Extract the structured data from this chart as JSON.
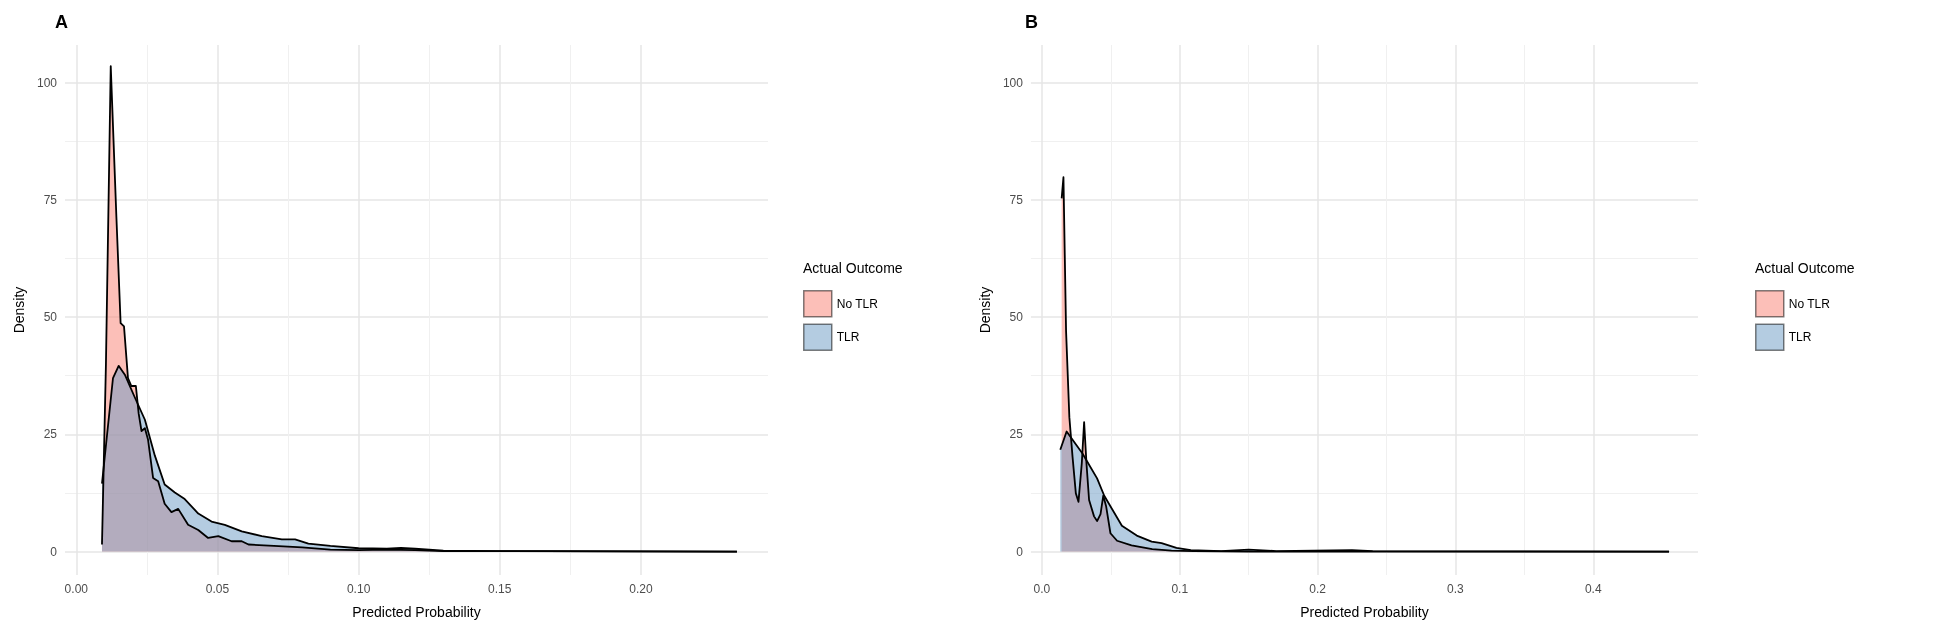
{
  "chart_data": [
    {
      "type": "area",
      "title": "A",
      "xlabel": "Predicted Probability",
      "ylabel": "Density",
      "legend_title": "Actual Outcome",
      "legend": "right",
      "grid": true,
      "xlim": [
        -0.004,
        0.245
      ],
      "xticks": [
        {
          "value": 0,
          "label": "0.00"
        },
        0.05,
        {
          "value": 0.1,
          "label": "0.10"
        },
        0.15,
        {
          "value": 0.2,
          "label": "0.20"
        }
      ],
      "ylim": [
        -5,
        108
      ],
      "yticks": [
        0,
        25,
        50,
        75,
        100
      ],
      "series": [
        {
          "name": "No TLR",
          "color": "#fa8072",
          "x": [
            0.0091,
            0.0105,
            0.0122,
            0.0142,
            0.0157,
            0.0169,
            0.0183,
            0.0195,
            0.0211,
            0.0221,
            0.0231,
            0.0243,
            0.0254,
            0.0272,
            0.029,
            0.0313,
            0.0337,
            0.0361,
            0.0396,
            0.0432,
            0.0467,
            0.0503,
            0.055,
            0.0586,
            0.061,
            0.07,
            0.08,
            0.09,
            0.1,
            0.11,
            0.12,
            0.13,
            0.15,
            0.234
          ],
          "values": [
            1.5,
            40,
            103.5,
            71.4,
            48.7,
            48,
            37,
            35.3,
            35.3,
            29.4,
            25.7,
            26.3,
            23.9,
            15.7,
            15,
            10.2,
            8.4,
            9.1,
            5.7,
            4.6,
            2.9,
            3.3,
            2.2,
            2.2,
            1.5,
            1.2,
            0.9,
            0.4,
            0.3,
            0.4,
            0.3,
            0.1,
            0.1,
            0
          ]
        },
        {
          "name": "TLR",
          "color": "#6a9ac4",
          "x": [
            0.0091,
            0.0106,
            0.013,
            0.015,
            0.0172,
            0.0207,
            0.0243,
            0.0278,
            0.0313,
            0.0349,
            0.0384,
            0.0432,
            0.0479,
            0.0526,
            0.0586,
            0.0657,
            0.0728,
            0.0775,
            0.0822,
            0.09,
            0.1,
            0.11,
            0.115,
            0.12,
            0.13,
            0.15,
            0.165,
            0.234
          ],
          "values": [
            14.5,
            23.2,
            37,
            39.6,
            37.7,
            32.9,
            28.1,
            20.5,
            14.3,
            12.6,
            11.2,
            8.1,
            6.4,
            5.7,
            4.3,
            3.3,
            2.6,
            2.6,
            1.7,
            1.2,
            0.7,
            0.6,
            0.8,
            0.6,
            0.2,
            0.1,
            0.1,
            0
          ]
        }
      ]
    },
    {
      "type": "area",
      "title": "B",
      "xlabel": "Predicted Probability",
      "ylabel": "Density",
      "legend_title": "Actual Outcome",
      "legend": "right",
      "grid": true,
      "xlim": [
        -0.008,
        0.476
      ],
      "xticks": [
        {
          "value": 0,
          "label": "0.0"
        },
        0.1,
        0.2,
        0.3,
        0.4
      ],
      "ylim": [
        -5,
        108
      ],
      "yticks": [
        0,
        25,
        50,
        75,
        100
      ],
      "series": [
        {
          "name": "No TLR",
          "color": "#fa8072",
          "x": [
            0.0143,
            0.0156,
            0.0175,
            0.0199,
            0.0222,
            0.0246,
            0.0265,
            0.0289,
            0.0306,
            0.0323,
            0.0342,
            0.0378,
            0.04,
            0.0425,
            0.0445,
            0.0466,
            0.0497,
            0.0545,
            0.065,
            0.08,
            0.094,
            0.11,
            0.15,
            0.455
          ],
          "values": [
            75.3,
            79.8,
            47,
            28.6,
            20.2,
            12.4,
            10.6,
            18.8,
            27.6,
            18.8,
            11,
            7.5,
            6.5,
            8,
            11.9,
            9.6,
            3.9,
            2.3,
            1.3,
            0.5,
            0.2,
            0.1,
            0,
            0
          ]
        },
        {
          "name": "TLR",
          "color": "#6a9ac4",
          "x": [
            0.0133,
            0.0179,
            0.0294,
            0.04,
            0.0452,
            0.058,
            0.0688,
            0.0796,
            0.0868,
            0.0976,
            0.108,
            0.13,
            0.15,
            0.17,
            0.225,
            0.24,
            0.455
          ],
          "values": [
            21.7,
            25.6,
            20.9,
            15.6,
            11.9,
            5.5,
            3.4,
            2.1,
            1.8,
            0.8,
            0.3,
            0.1,
            0.4,
            0.1,
            0.3,
            0.1,
            0
          ]
        }
      ]
    }
  ]
}
